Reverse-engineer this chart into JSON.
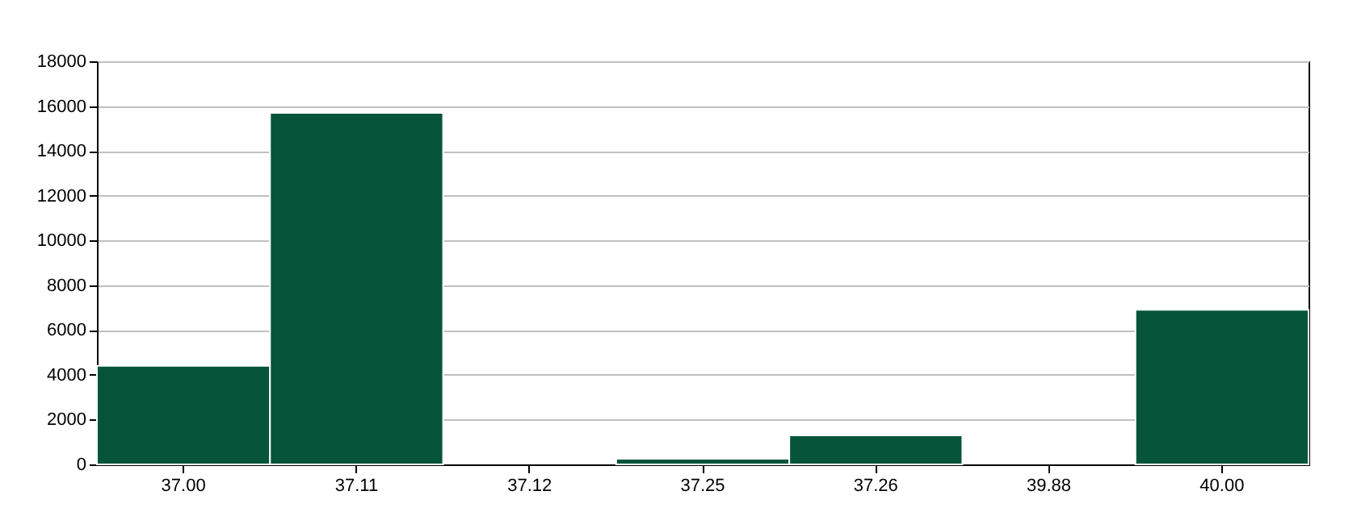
{
  "chart_data": {
    "type": "bar",
    "categories": [
      "37.00",
      "37.11",
      "37.12",
      "37.25",
      "37.26",
      "39.88",
      "40.00"
    ],
    "values": [
      4400,
      15700,
      0,
      250,
      1300,
      0,
      6900
    ],
    "color": "#06553a",
    "ylim": [
      0,
      18000
    ],
    "yticks": [
      0,
      2000,
      4000,
      6000,
      8000,
      10000,
      12000,
      14000,
      16000,
      18000
    ],
    "grid": "y"
  }
}
